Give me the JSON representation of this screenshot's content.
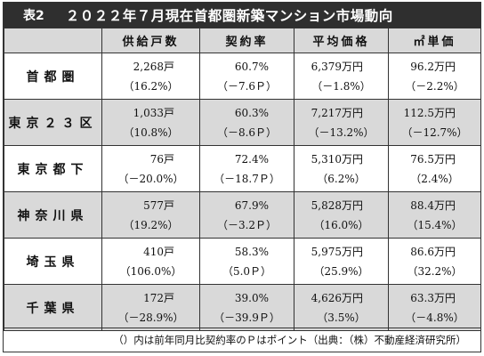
{
  "title": {
    "number": "表2",
    "text": "２０２２年７月現在首都圏新築マンション市場動向"
  },
  "headers": [
    "供給戸数",
    "契約率",
    "平均価格",
    "㎡単価"
  ],
  "rows": [
    {
      "label": "首都圏",
      "supply": "2,268戸",
      "supply_change": "（16.2%）",
      "rate": "60.7%",
      "rate_change": "（－7.6Ｐ）",
      "price": "6,379万円",
      "price_change": "（－1.8%）",
      "unit_price": "96.2万円",
      "unit_price_change": "（－2.2%）"
    },
    {
      "label": "東京２３区",
      "supply": "1,033戸",
      "supply_change": "（10.8%）",
      "rate": "60.3%",
      "rate_change": "（－8.6Ｐ）",
      "price": "7,217万円",
      "price_change": "（－13.2%）",
      "unit_price": "112.5万円",
      "unit_price_change": "（－12.7%）"
    },
    {
      "label": "東京都下",
      "supply": "76戸",
      "supply_change": "（－20.0%）",
      "rate": "72.4%",
      "rate_change": "（－18.7Ｐ）",
      "price": "5,310万円",
      "price_change": "（6.2%）",
      "unit_price": "76.5万円",
      "unit_price_change": "（2.4%）"
    },
    {
      "label": "神奈川県",
      "supply": "577戸",
      "supply_change": "（19.2%）",
      "rate": "67.9%",
      "rate_change": "（－3.2Ｐ）",
      "price": "5,828万円",
      "price_change": "（16.0%）",
      "unit_price": "88.4万円",
      "unit_price_change": "（15.4%）"
    },
    {
      "label": "埼玉県",
      "supply": "410戸",
      "supply_change": "（106.0%）",
      "rate": "58.3%",
      "rate_change": "（5.0Ｐ）",
      "price": "5,975万円",
      "price_change": "（25.9%）",
      "unit_price": "86.6万円",
      "unit_price_change": "（32.2%）"
    },
    {
      "label": "千葉県",
      "supply": "172戸",
      "supply_change": "（－28.9%）",
      "rate": "39.0%",
      "rate_change": "（－39.9Ｐ）",
      "price": "4,626万円",
      "price_change": "（3.5%）",
      "unit_price": "63.3万円",
      "unit_price_change": "（－4.8%）"
    }
  ],
  "footnote": "（）内は前年同月比契約率のＰはポイント（出典：（株）不動産経済研究所）",
  "colors": {
    "title_bg": "#2f2f2f",
    "title_text": "#ffffff",
    "shade": "#d9d9d9",
    "border": "#333333"
  }
}
